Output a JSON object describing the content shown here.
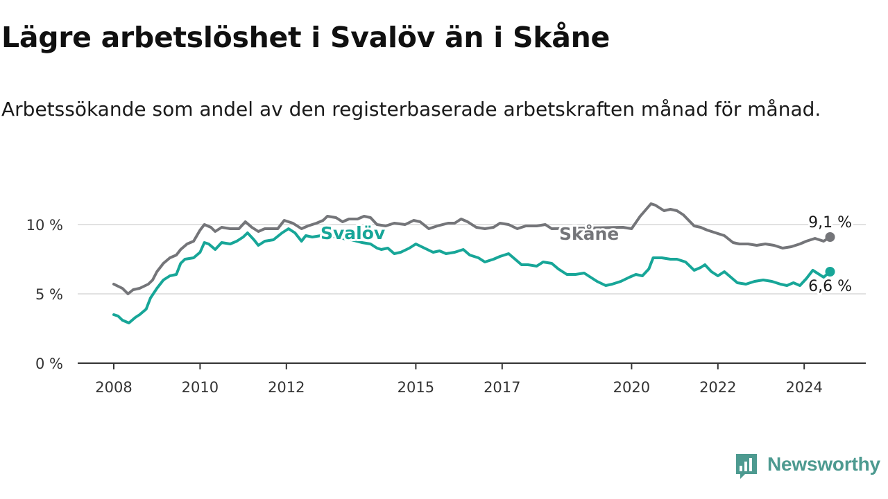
{
  "title": "Lägre arbetslöshet i Svalöv än i Skåne",
  "subtitle": "Arbetssökande som andel av den registerbaserade arbetskraften månad för månad.",
  "brand": {
    "name": "Newsworthy",
    "color": "#4d9a90",
    "icon": "newsworthy-logo-icon"
  },
  "chart_data": {
    "type": "line",
    "title": "Lägre arbetslöshet i Svalöv än i Skåne",
    "xlabel": "",
    "ylabel": "",
    "xlim": [
      2008.0,
      2025.3
    ],
    "ylim": [
      0,
      12
    ],
    "yticks": [
      0,
      5,
      10
    ],
    "ytick_labels": [
      "0 %",
      "5 %",
      "10 %"
    ],
    "xticks": [
      2008,
      2010,
      2012,
      2015,
      2017,
      2020,
      2022,
      2024
    ],
    "xtick_labels": [
      "2008",
      "2010",
      "2012",
      "2015",
      "2017",
      "2020",
      "2022",
      "2024"
    ],
    "grid": true,
    "series": [
      {
        "name": "Skåne",
        "label": "Skåne",
        "color": "#747579",
        "end_label": "9,1 %",
        "points": [
          [
            2008.0,
            5.7
          ],
          [
            2008.2,
            5.4
          ],
          [
            2008.33,
            5.0
          ],
          [
            2008.45,
            5.3
          ],
          [
            2008.6,
            5.4
          ],
          [
            2008.8,
            5.7
          ],
          [
            2008.9,
            6.0
          ],
          [
            2009.0,
            6.6
          ],
          [
            2009.15,
            7.2
          ],
          [
            2009.3,
            7.6
          ],
          [
            2009.45,
            7.8
          ],
          [
            2009.55,
            8.2
          ],
          [
            2009.7,
            8.6
          ],
          [
            2009.85,
            8.8
          ],
          [
            2010.0,
            9.6
          ],
          [
            2010.1,
            10.0
          ],
          [
            2010.25,
            9.8
          ],
          [
            2010.35,
            9.5
          ],
          [
            2010.5,
            9.8
          ],
          [
            2010.7,
            9.7
          ],
          [
            2010.9,
            9.7
          ],
          [
            2011.05,
            10.2
          ],
          [
            2011.2,
            9.8
          ],
          [
            2011.35,
            9.5
          ],
          [
            2011.5,
            9.7
          ],
          [
            2011.8,
            9.7
          ],
          [
            2011.95,
            10.3
          ],
          [
            2012.15,
            10.1
          ],
          [
            2012.35,
            9.7
          ],
          [
            2012.5,
            9.9
          ],
          [
            2012.7,
            10.1
          ],
          [
            2012.85,
            10.3
          ],
          [
            2012.95,
            10.6
          ],
          [
            2013.15,
            10.5
          ],
          [
            2013.3,
            10.2
          ],
          [
            2013.45,
            10.4
          ],
          [
            2013.65,
            10.4
          ],
          [
            2013.8,
            10.6
          ],
          [
            2013.95,
            10.5
          ],
          [
            2014.1,
            10.0
          ],
          [
            2014.3,
            9.9
          ],
          [
            2014.5,
            10.1
          ],
          [
            2014.75,
            10.0
          ],
          [
            2014.95,
            10.3
          ],
          [
            2015.1,
            10.2
          ],
          [
            2015.3,
            9.7
          ],
          [
            2015.5,
            9.9
          ],
          [
            2015.75,
            10.1
          ],
          [
            2015.9,
            10.1
          ],
          [
            2016.05,
            10.4
          ],
          [
            2016.2,
            10.2
          ],
          [
            2016.4,
            9.8
          ],
          [
            2016.6,
            9.7
          ],
          [
            2016.8,
            9.8
          ],
          [
            2016.95,
            10.1
          ],
          [
            2017.15,
            10.0
          ],
          [
            2017.35,
            9.7
          ],
          [
            2017.55,
            9.9
          ],
          [
            2017.8,
            9.9
          ],
          [
            2018.0,
            10.0
          ],
          [
            2018.15,
            9.7
          ],
          [
            2019.8,
            9.8
          ],
          [
            2020.0,
            9.7
          ],
          [
            2020.2,
            10.6
          ],
          [
            2020.45,
            11.5
          ],
          [
            2020.55,
            11.4
          ],
          [
            2020.75,
            11.0
          ],
          [
            2020.9,
            11.1
          ],
          [
            2021.05,
            11.0
          ],
          [
            2021.2,
            10.7
          ],
          [
            2021.45,
            9.9
          ],
          [
            2021.6,
            9.8
          ],
          [
            2021.75,
            9.6
          ],
          [
            2021.95,
            9.4
          ],
          [
            2022.15,
            9.2
          ],
          [
            2022.35,
            8.7
          ],
          [
            2022.5,
            8.6
          ],
          [
            2022.7,
            8.6
          ],
          [
            2022.9,
            8.5
          ],
          [
            2023.1,
            8.6
          ],
          [
            2023.3,
            8.5
          ],
          [
            2023.5,
            8.3
          ],
          [
            2023.7,
            8.4
          ],
          [
            2023.9,
            8.6
          ],
          [
            2024.05,
            8.8
          ],
          [
            2024.25,
            9.0
          ],
          [
            2024.45,
            8.8
          ],
          [
            2024.6,
            9.1
          ]
        ]
      },
      {
        "name": "Svalöv",
        "label": "Svalöv",
        "color": "#17a698",
        "end_label": "6,6 %",
        "points": [
          [
            2008.0,
            3.5
          ],
          [
            2008.1,
            3.4
          ],
          [
            2008.2,
            3.1
          ],
          [
            2008.35,
            2.9
          ],
          [
            2008.5,
            3.3
          ],
          [
            2008.6,
            3.5
          ],
          [
            2008.75,
            3.9
          ],
          [
            2008.85,
            4.7
          ],
          [
            2009.0,
            5.4
          ],
          [
            2009.15,
            6.0
          ],
          [
            2009.3,
            6.3
          ],
          [
            2009.45,
            6.4
          ],
          [
            2009.55,
            7.2
          ],
          [
            2009.65,
            7.5
          ],
          [
            2009.85,
            7.6
          ],
          [
            2010.0,
            8.0
          ],
          [
            2010.1,
            8.7
          ],
          [
            2010.2,
            8.6
          ],
          [
            2010.35,
            8.2
          ],
          [
            2010.5,
            8.7
          ],
          [
            2010.7,
            8.6
          ],
          [
            2010.85,
            8.8
          ],
          [
            2011.0,
            9.1
          ],
          [
            2011.1,
            9.4
          ],
          [
            2011.25,
            8.9
          ],
          [
            2011.35,
            8.5
          ],
          [
            2011.5,
            8.8
          ],
          [
            2011.7,
            8.9
          ],
          [
            2011.9,
            9.4
          ],
          [
            2012.05,
            9.7
          ],
          [
            2012.2,
            9.4
          ],
          [
            2012.35,
            8.8
          ],
          [
            2012.45,
            9.2
          ],
          [
            2012.6,
            9.1
          ],
          [
            2012.8,
            9.2
          ],
          [
            2013.0,
            9.2
          ],
          [
            2013.3,
            9.0
          ],
          [
            2013.5,
            8.9
          ],
          [
            2013.75,
            8.7
          ],
          [
            2013.95,
            8.6
          ],
          [
            2014.1,
            8.3
          ],
          [
            2014.2,
            8.2
          ],
          [
            2014.35,
            8.3
          ],
          [
            2014.5,
            7.9
          ],
          [
            2014.65,
            8.0
          ],
          [
            2014.85,
            8.3
          ],
          [
            2015.0,
            8.6
          ],
          [
            2015.2,
            8.3
          ],
          [
            2015.4,
            8.0
          ],
          [
            2015.55,
            8.1
          ],
          [
            2015.7,
            7.9
          ],
          [
            2015.9,
            8.0
          ],
          [
            2016.1,
            8.2
          ],
          [
            2016.25,
            7.8
          ],
          [
            2016.45,
            7.6
          ],
          [
            2016.6,
            7.3
          ],
          [
            2016.8,
            7.5
          ],
          [
            2016.95,
            7.7
          ],
          [
            2017.15,
            7.9
          ],
          [
            2017.3,
            7.5
          ],
          [
            2017.45,
            7.1
          ],
          [
            2017.6,
            7.1
          ],
          [
            2017.8,
            7.0
          ],
          [
            2017.95,
            7.3
          ],
          [
            2018.15,
            7.2
          ],
          [
            2018.3,
            6.8
          ],
          [
            2018.5,
            6.4
          ],
          [
            2018.7,
            6.4
          ],
          [
            2018.9,
            6.5
          ],
          [
            2019.05,
            6.2
          ],
          [
            2019.2,
            5.9
          ],
          [
            2019.4,
            5.6
          ],
          [
            2019.55,
            5.7
          ],
          [
            2019.75,
            5.9
          ],
          [
            2019.95,
            6.2
          ],
          [
            2020.1,
            6.4
          ],
          [
            2020.25,
            6.3
          ],
          [
            2020.4,
            6.8
          ],
          [
            2020.5,
            7.6
          ],
          [
            2020.7,
            7.6
          ],
          [
            2020.9,
            7.5
          ],
          [
            2021.05,
            7.5
          ],
          [
            2021.25,
            7.3
          ],
          [
            2021.45,
            6.7
          ],
          [
            2021.6,
            6.9
          ],
          [
            2021.7,
            7.1
          ],
          [
            2021.85,
            6.6
          ],
          [
            2022.0,
            6.3
          ],
          [
            2022.15,
            6.6
          ],
          [
            2022.3,
            6.2
          ],
          [
            2022.45,
            5.8
          ],
          [
            2022.65,
            5.7
          ],
          [
            2022.85,
            5.9
          ],
          [
            2023.05,
            6.0
          ],
          [
            2023.25,
            5.9
          ],
          [
            2023.45,
            5.7
          ],
          [
            2023.6,
            5.6
          ],
          [
            2023.75,
            5.8
          ],
          [
            2023.9,
            5.6
          ],
          [
            2024.05,
            6.1
          ],
          [
            2024.2,
            6.7
          ],
          [
            2024.3,
            6.5
          ],
          [
            2024.45,
            6.2
          ],
          [
            2024.6,
            6.6
          ]
        ]
      }
    ]
  }
}
